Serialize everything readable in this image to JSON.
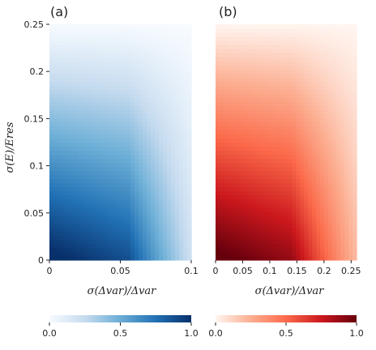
{
  "chart_data": [
    {
      "type": "heatmap",
      "panel_label": "(a)",
      "colormap": "Blues",
      "xlabel": "σ(Δvar)/Δvar",
      "ylabel": "σ(E)/Eres",
      "xlim": [
        0,
        0.1
      ],
      "ylim": [
        0,
        0.25
      ],
      "x_ticks": [
        "0",
        "0.05",
        "0.1"
      ],
      "x_tick_values": [
        0,
        0.05,
        0.1
      ],
      "y_ticks": [
        "0",
        "0.05",
        "0.1",
        "0.15",
        "0.2",
        "0.25"
      ],
      "y_tick_values": [
        0,
        0.05,
        0.1,
        0.15,
        0.2,
        0.25
      ],
      "peak_x": 0.056,
      "colorbar": {
        "ticks": [
          "0.0",
          "0.5",
          "1.0"
        ],
        "range": [
          0,
          1
        ]
      }
    },
    {
      "type": "heatmap",
      "panel_label": "(b)",
      "colormap": "Reds",
      "xlabel": "σ(Δvar)/Δvar",
      "ylabel": "",
      "xlim": [
        0,
        0.26
      ],
      "ylim": [
        0,
        0.25
      ],
      "x_ticks": [
        "0",
        "0.05",
        "0.1",
        "0.15",
        "0.2",
        "0.25"
      ],
      "x_tick_values": [
        0,
        0.05,
        0.1,
        0.15,
        0.2,
        0.25
      ],
      "y_ticks": [],
      "peak_x": 0.14,
      "colorbar": {
        "ticks": [
          "0.0",
          "0.5",
          "1.0"
        ],
        "range": [
          0,
          1
        ]
      }
    }
  ]
}
